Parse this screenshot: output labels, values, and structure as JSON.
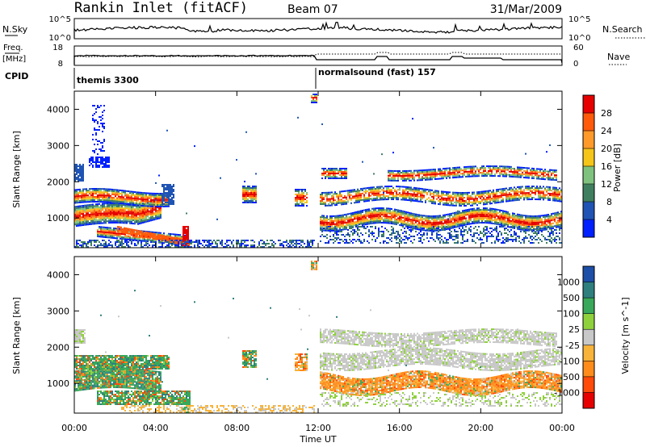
{
  "header": {
    "title": "Rankin Inlet (fitACF)",
    "beam": "Beam 07",
    "date": "31/Mar/2009"
  },
  "noise_panel": {
    "left_label": "N.Sky",
    "left_tick_top": "10^5",
    "left_tick_bottom": "10^0",
    "right_tick_top": "10^5",
    "right_tick_bottom": "10^0",
    "right_label": "N.Search"
  },
  "freq_panel": {
    "left_label_1": "Freq.",
    "left_label_2": "[MHz]",
    "left_tick_top": "18",
    "left_tick_bottom": "8",
    "right_tick_top": "60",
    "right_tick_bottom": "0",
    "right_label": "Nave"
  },
  "cpid_panel": {
    "label": "CPID",
    "segment_1": "themis 3300",
    "segment_2": "normalsound (fast) 157"
  },
  "chart_data": [
    {
      "type": "heatmap",
      "title": "",
      "xlabel": "",
      "ylabel": "Slant Range [km]",
      "y_ticks": [
        "1000",
        "2000",
        "3000",
        "4000"
      ],
      "ylim": [
        180,
        4500
      ],
      "colorbar_label": "Power [dB]",
      "colorbar_ticks": [
        "4",
        "8",
        "12",
        "16",
        "20",
        "24",
        "28"
      ],
      "colorbar_colors": [
        "#0020ff",
        "#1f54b4",
        "#3f7f60",
        "#7fc27f",
        "#f5c51a",
        "#ff9a2a",
        "#ff5a0a",
        "#e60000"
      ]
    },
    {
      "type": "heatmap",
      "title": "",
      "xlabel": "Time UT",
      "ylabel": "Slant Range [km]",
      "y_ticks": [
        "1000",
        "2000",
        "3000",
        "4000"
      ],
      "ylim": [
        180,
        4500
      ],
      "x_ticks": [
        "00:00",
        "04:00",
        "08:00",
        "12:00",
        "16:00",
        "20:00",
        "00:00"
      ],
      "colorbar_label": "Velocity [m s^-1]",
      "colorbar_ticks": [
        "1000",
        "500",
        "100",
        "25",
        "-25",
        "-100",
        "-500",
        "-1000"
      ],
      "colorbar_colors": [
        "#1d4fa8",
        "#2f7f7f",
        "#3aa85a",
        "#8fd13c",
        "#c8c8c8",
        "#f7b33a",
        "#ff8c1a",
        "#ff4a0a",
        "#e60000"
      ]
    }
  ]
}
